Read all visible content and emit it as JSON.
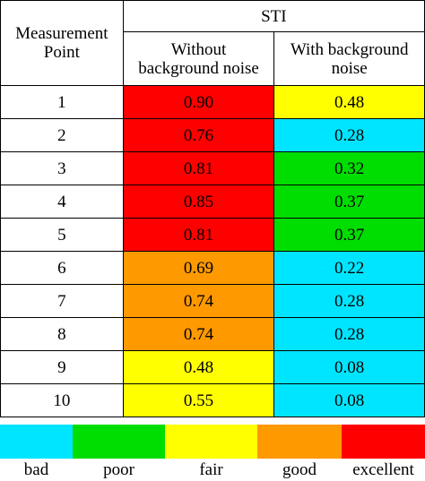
{
  "table": {
    "header_point": "Measurement Point",
    "header_group": "STI",
    "header_without": "Without background noise",
    "header_with": "With background noise"
  },
  "rows": [
    {
      "point": "1",
      "without": "0.90",
      "without_class": "excellent",
      "with": "0.48",
      "with_class": "fair"
    },
    {
      "point": "2",
      "without": "0.76",
      "without_class": "excellent",
      "with": "0.28",
      "with_class": "bad"
    },
    {
      "point": "3",
      "without": "0.81",
      "without_class": "excellent",
      "with": "0.32",
      "with_class": "poor"
    },
    {
      "point": "4",
      "without": "0.85",
      "without_class": "excellent",
      "with": "0.37",
      "with_class": "poor"
    },
    {
      "point": "5",
      "without": "0.81",
      "without_class": "excellent",
      "with": "0.37",
      "with_class": "poor"
    },
    {
      "point": "6",
      "without": "0.69",
      "without_class": "good",
      "with": "0.22",
      "with_class": "bad"
    },
    {
      "point": "7",
      "without": "0.74",
      "without_class": "good",
      "with": "0.28",
      "with_class": "bad"
    },
    {
      "point": "8",
      "without": "0.74",
      "without_class": "good",
      "with": "0.28",
      "with_class": "bad"
    },
    {
      "point": "9",
      "without": "0.48",
      "without_class": "fair",
      "with": "0.08",
      "with_class": "bad"
    },
    {
      "point": "10",
      "without": "0.55",
      "without_class": "fair",
      "with": "0.08",
      "with_class": "bad"
    }
  ],
  "legend": [
    {
      "label": "bad",
      "color": "#00e5ff"
    },
    {
      "label": "poor",
      "color": "#00dd00"
    },
    {
      "label": "fair",
      "color": "#ffff00"
    },
    {
      "label": "good",
      "color": "#ff9900"
    },
    {
      "label": "excellent",
      "color": "#ff0000"
    }
  ]
}
